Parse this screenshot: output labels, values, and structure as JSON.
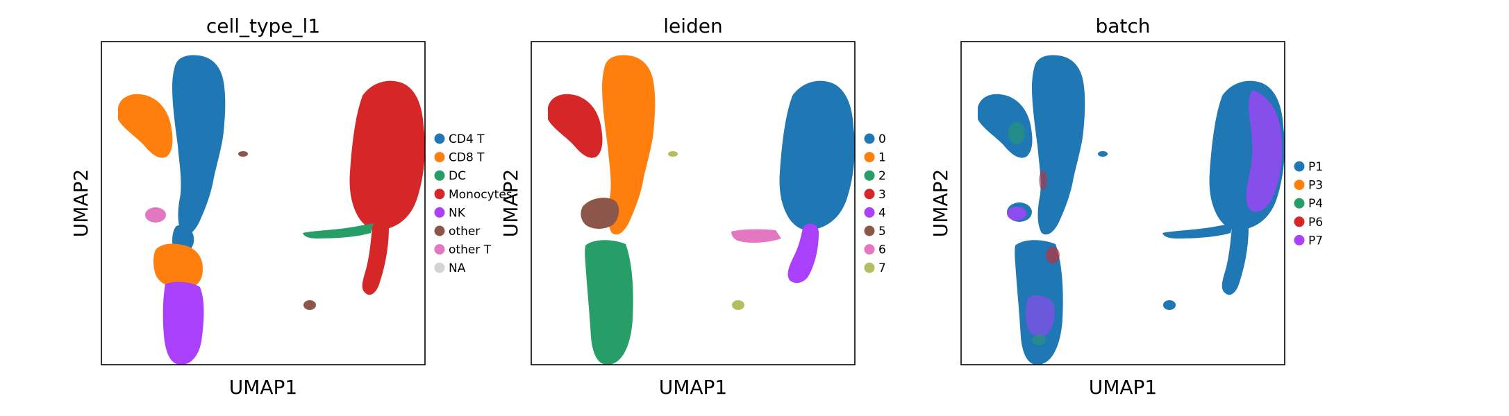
{
  "figure": {
    "palette": {
      "c0": "#1f77b4",
      "c1": "#ff7f0e",
      "c2": "#279e68",
      "c3": "#d62728",
      "c4": "#aa40fc",
      "c5": "#8c564b",
      "c6": "#e377c2",
      "c7": "#b5bd61",
      "na": "#d3d3d3"
    }
  },
  "chart_data": [
    {
      "type": "scatter",
      "title": "cell_type_l1",
      "xlabel": "UMAP1",
      "ylabel": "UMAP2",
      "xticks": "none",
      "yticks": "none",
      "grid": false,
      "legend_placement": "right, outside",
      "legend": [
        {
          "label": "CD4 T",
          "color": "#1f77b4"
        },
        {
          "label": "CD8 T",
          "color": "#ff7f0e"
        },
        {
          "label": "DC",
          "color": "#279e68"
        },
        {
          "label": "Monocytes",
          "color": "#d62728"
        },
        {
          "label": "NK",
          "color": "#aa40fc"
        },
        {
          "label": "other",
          "color": "#8c564b"
        },
        {
          "label": "other T",
          "color": "#e377c2"
        },
        {
          "label": "NA",
          "color": "#d3d3d3"
        }
      ]
    },
    {
      "type": "scatter",
      "title": "leiden",
      "xlabel": "UMAP1",
      "ylabel": "UMAP2",
      "xticks": "none",
      "yticks": "none",
      "grid": false,
      "legend_placement": "right, outside",
      "legend": [
        {
          "label": "0",
          "color": "#1f77b4"
        },
        {
          "label": "1",
          "color": "#ff7f0e"
        },
        {
          "label": "2",
          "color": "#279e68"
        },
        {
          "label": "3",
          "color": "#d62728"
        },
        {
          "label": "4",
          "color": "#aa40fc"
        },
        {
          "label": "5",
          "color": "#8c564b"
        },
        {
          "label": "6",
          "color": "#e377c2"
        },
        {
          "label": "7",
          "color": "#b5bd61"
        }
      ]
    },
    {
      "type": "scatter",
      "title": "batch",
      "xlabel": "UMAP1",
      "ylabel": "UMAP2",
      "xticks": "none",
      "yticks": "none",
      "grid": false,
      "legend_placement": "right, outside",
      "legend": [
        {
          "label": "P1",
          "color": "#1f77b4"
        },
        {
          "label": "P3",
          "color": "#ff7f0e"
        },
        {
          "label": "P4",
          "color": "#279e68"
        },
        {
          "label": "P6",
          "color": "#d62728"
        },
        {
          "label": "P7",
          "color": "#aa40fc"
        }
      ]
    }
  ]
}
